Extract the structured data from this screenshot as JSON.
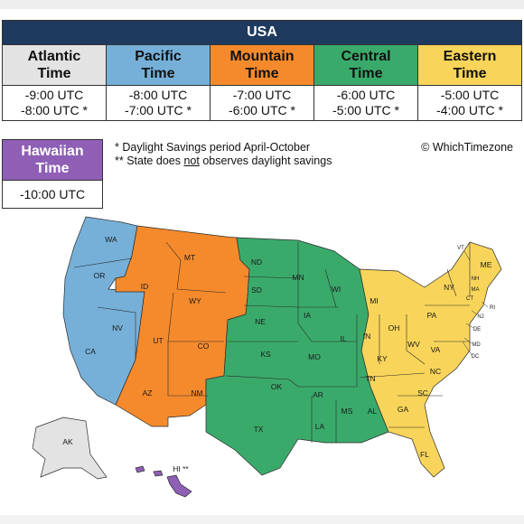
{
  "header": {
    "title": "USA"
  },
  "zones": [
    {
      "name": "Atlantic\nTime",
      "offsets": "-9:00 UTC\n-8:00 UTC *",
      "color": "#e3e3e3"
    },
    {
      "name": "Pacific\nTime",
      "offsets": "-8:00 UTC\n-7:00 UTC *",
      "color": "#76b0d8"
    },
    {
      "name": "Mountain\nTime",
      "offsets": "-7:00 UTC\n-6:00 UTC *",
      "color": "#f58a2c"
    },
    {
      "name": "Central\nTime",
      "offsets": "-6:00 UTC\n-5:00 UTC *",
      "color": "#3aaa6b"
    },
    {
      "name": "Eastern\nTime",
      "offsets": "-5:00 UTC\n-4:00 UTC *",
      "color": "#f8d55a"
    }
  ],
  "hawaii": {
    "name": "Hawaiian\nTime",
    "offsets": "-10:00 UTC",
    "color": "#8e5fb5"
  },
  "notes": {
    "note1": "*  Daylight Savings period April-October",
    "note2_before": "** State does ",
    "note2_underlined": "not",
    "note2_after": " observes daylight savings"
  },
  "credit": "© WhichTimezone",
  "map": {
    "labels": [
      "WA",
      "OR",
      "CA",
      "NV",
      "ID",
      "MT",
      "WY",
      "UT",
      "AZ",
      "CO",
      "NM",
      "ND",
      "SD",
      "NE",
      "KS",
      "OK",
      "TX",
      "MN",
      "IA",
      "MO",
      "AR",
      "LA",
      "WI",
      "IL",
      "MS",
      "TN",
      "AL",
      "MI",
      "IN",
      "OH",
      "KY",
      "GA",
      "FL",
      "SC",
      "NC",
      "VA",
      "WV",
      "PA",
      "NY",
      "VT",
      "NH",
      "ME",
      "MA",
      "CT",
      "RI",
      "NJ",
      "DE",
      "MD",
      "DC",
      "AK",
      "HI **"
    ]
  }
}
